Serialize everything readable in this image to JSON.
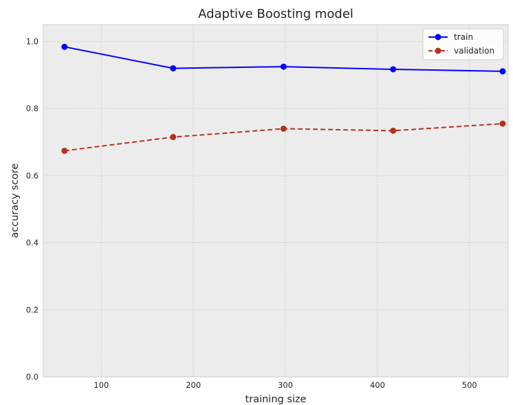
{
  "chart_data": {
    "type": "line",
    "title": "Adaptive Boosting model",
    "xlabel": "training size",
    "ylabel": "accuracy score",
    "xlim": [
      37,
      542
    ],
    "ylim": [
      0.0,
      1.05
    ],
    "xticks": [
      100,
      200,
      300,
      400,
      500
    ],
    "yticks": [
      0.0,
      0.2,
      0.4,
      0.6,
      0.8,
      1.0
    ],
    "xtick_labels": [
      "100",
      "200",
      "300",
      "400",
      "500"
    ],
    "ytick_labels": [
      "0.0",
      "0.2",
      "0.4",
      "0.6",
      "0.8",
      "1.0"
    ],
    "grid": true,
    "legend_position": "top-right",
    "x": [
      60,
      178,
      298,
      417,
      536
    ],
    "series": [
      {
        "name": "train",
        "values": [
          0.984,
          0.92,
          0.925,
          0.917,
          0.911
        ],
        "color": "#0000ff",
        "dash": false
      },
      {
        "name": "validation",
        "values": [
          0.674,
          0.715,
          0.74,
          0.734,
          0.755
        ],
        "color": "#b5321e",
        "dash": true
      }
    ]
  }
}
